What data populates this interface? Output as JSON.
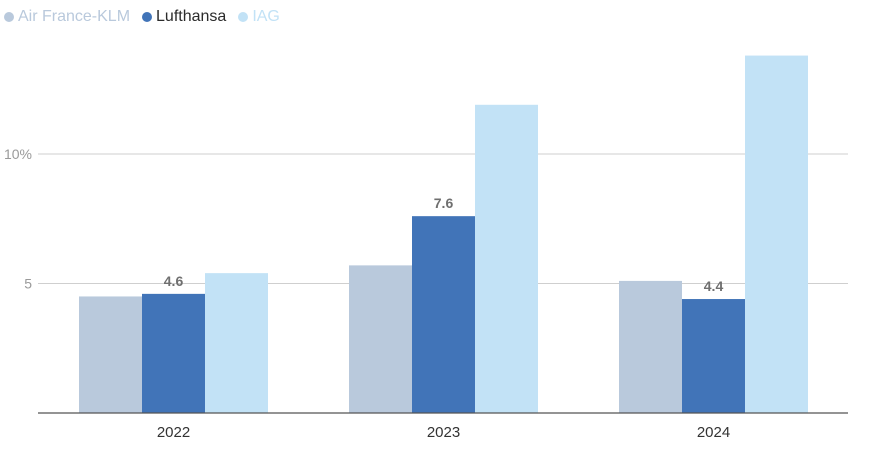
{
  "chart_data": {
    "type": "bar",
    "categories": [
      "2022",
      "2023",
      "2024"
    ],
    "series": [
      {
        "name": "Air France-KLM",
        "values": [
          4.5,
          5.7,
          5.1
        ],
        "color": "#b9c9dc",
        "legend_text_color": "#b9c9dc"
      },
      {
        "name": "Lufthansa",
        "values": [
          4.6,
          7.6,
          4.4
        ],
        "color": "#4174b8",
        "legend_text_color": "#2b2b2b",
        "data_labels": [
          "4.6",
          "7.6",
          "4.4"
        ]
      },
      {
        "name": "IAG",
        "values": [
          5.4,
          11.9,
          13.8
        ],
        "color": "#c2e2f6",
        "legend_text_color": "#c2e2f6"
      }
    ],
    "y_ticks": [
      {
        "value": 5,
        "label": "5"
      },
      {
        "value": 10,
        "label": "10%"
      }
    ],
    "ylim": [
      0,
      15
    ],
    "grid": true,
    "legend_position": "top-left",
    "title": "",
    "xlabel": "",
    "ylabel": ""
  }
}
